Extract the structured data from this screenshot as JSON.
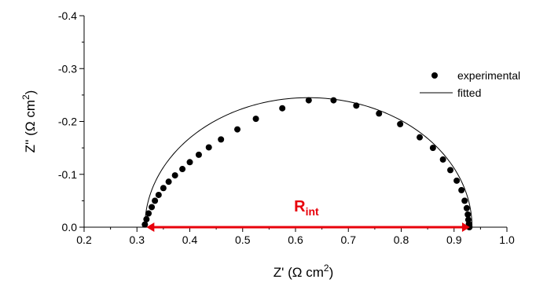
{
  "chart_data": {
    "type": "scatter",
    "xlabel": "Z' (Ω cm²)",
    "ylabel": "Z'' (Ω cm²)",
    "xlim": [
      0.2,
      1.0
    ],
    "ylim": [
      0.0,
      -0.4
    ],
    "x_ticks": [
      "0.2",
      "0.3",
      "0.4",
      "0.5",
      "0.6",
      "0.7",
      "0.8",
      "0.9",
      "1.0"
    ],
    "y_ticks": [
      "0.0",
      "-0.1",
      "-0.2",
      "-0.3",
      "-0.4"
    ],
    "grid": false,
    "legend_position": "top-right",
    "series": [
      {
        "name": "experimental",
        "marker": "circle",
        "color": "#000000",
        "x": [
          0.315,
          0.318,
          0.322,
          0.328,
          0.334,
          0.341,
          0.35,
          0.36,
          0.372,
          0.386,
          0.4,
          0.417,
          0.436,
          0.459,
          0.49,
          0.525,
          0.575,
          0.625,
          0.672,
          0.715,
          0.758,
          0.798,
          0.835,
          0.86,
          0.879,
          0.893,
          0.905,
          0.914,
          0.92,
          0.924,
          0.926,
          0.927,
          0.928,
          0.929
        ],
        "y": [
          -0.005,
          -0.015,
          -0.026,
          -0.038,
          -0.05,
          -0.061,
          -0.074,
          -0.086,
          -0.098,
          -0.11,
          -0.123,
          -0.137,
          -0.151,
          -0.166,
          -0.185,
          -0.205,
          -0.225,
          -0.24,
          -0.24,
          -0.23,
          -0.215,
          -0.195,
          -0.17,
          -0.15,
          -0.128,
          -0.108,
          -0.088,
          -0.07,
          -0.05,
          -0.036,
          -0.024,
          -0.014,
          -0.006,
          0.0
        ]
      },
      {
        "name": "fitted",
        "style": "line",
        "color": "#000000",
        "center": 0.6245,
        "radius": 0.3095,
        "max_neg_imag": 0.245
      }
    ],
    "annotations": [
      {
        "text": "R",
        "subscript": "int",
        "color": "#e8000b",
        "arrow_from_x": 0.318,
        "arrow_to_x": 0.93,
        "arrow_y": 0.0
      }
    ]
  }
}
